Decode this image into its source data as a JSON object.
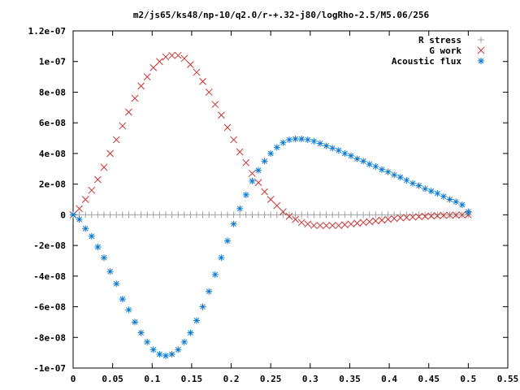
{
  "chart_data": {
    "type": "scatter",
    "title": "m2/js65/ks48/np-10/q2.0/r-+.32-j80/logRho-2.5/M5.06/256",
    "xlabel": "",
    "ylabel": "",
    "xlim": [
      0,
      0.55
    ],
    "ylim": [
      -1e-07,
      1.2e-07
    ],
    "grid": false,
    "legend_position": "top-right",
    "x_ticks": [
      {
        "value": 0,
        "label": "0"
      },
      {
        "value": 0.05,
        "label": "0.05"
      },
      {
        "value": 0.1,
        "label": "0.1"
      },
      {
        "value": 0.15,
        "label": "0.15"
      },
      {
        "value": 0.2,
        "label": "0.2"
      },
      {
        "value": 0.25,
        "label": "0.25"
      },
      {
        "value": 0.3,
        "label": "0.3"
      },
      {
        "value": 0.35,
        "label": "0.35"
      },
      {
        "value": 0.4,
        "label": "0.4"
      },
      {
        "value": 0.45,
        "label": "0.45"
      },
      {
        "value": 0.5,
        "label": "0.5"
      },
      {
        "value": 0.55,
        "label": "0.55"
      }
    ],
    "y_ticks": [
      {
        "value": -1e-07,
        "label": "-1e-07"
      },
      {
        "value": -8e-08,
        "label": "-8e-08"
      },
      {
        "value": -6e-08,
        "label": "-6e-08"
      },
      {
        "value": -4e-08,
        "label": "-4e-08"
      },
      {
        "value": -2e-08,
        "label": "-2e-08"
      },
      {
        "value": 0,
        "label": "0"
      },
      {
        "value": 2e-08,
        "label": "2e-08"
      },
      {
        "value": 4e-08,
        "label": "4e-08"
      },
      {
        "value": 6e-08,
        "label": "6e-08"
      },
      {
        "value": 8e-08,
        "label": "8e-08"
      },
      {
        "value": 1e-07,
        "label": "1e-07"
      },
      {
        "value": 1.2e-07,
        "label": "1.2e-07"
      }
    ],
    "x": [
      0.0,
      0.00781,
      0.01563,
      0.02344,
      0.03125,
      0.03906,
      0.04688,
      0.05469,
      0.0625,
      0.07031,
      0.07813,
      0.08594,
      0.09375,
      0.10156,
      0.10938,
      0.11719,
      0.125,
      0.13281,
      0.14063,
      0.14844,
      0.15625,
      0.16406,
      0.17188,
      0.17969,
      0.1875,
      0.19531,
      0.20313,
      0.21094,
      0.21875,
      0.22656,
      0.23438,
      0.24219,
      0.25,
      0.25781,
      0.26563,
      0.27344,
      0.28125,
      0.28906,
      0.29688,
      0.30469,
      0.3125,
      0.32031,
      0.32813,
      0.33594,
      0.34375,
      0.35156,
      0.35938,
      0.36719,
      0.375,
      0.38281,
      0.39063,
      0.39844,
      0.40625,
      0.41406,
      0.42188,
      0.42969,
      0.4375,
      0.44531,
      0.45313,
      0.46094,
      0.46875,
      0.47656,
      0.48438,
      0.49219,
      0.5
    ],
    "series": [
      {
        "name": "R stress",
        "marker": "plus",
        "color": "#a0a0a0",
        "values": [
          0.0,
          0.0,
          0.0,
          0.0,
          0.0,
          0.0,
          0.0,
          0.0,
          0.0,
          0.0,
          0.0,
          0.0,
          0.0,
          0.0,
          0.0,
          0.0,
          0.0,
          0.0,
          0.0,
          0.0,
          0.0,
          0.0,
          0.0,
          0.0,
          0.0,
          0.0,
          0.0,
          0.0,
          0.0,
          0.0,
          0.0,
          0.0,
          0.0,
          0.0,
          0.0,
          0.0,
          0.0,
          0.0,
          0.0,
          0.0,
          0.0,
          0.0,
          0.0,
          0.0,
          0.0,
          0.0,
          0.0,
          0.0,
          0.0,
          0.0,
          0.0,
          0.0,
          0.0,
          0.0,
          0.0,
          0.0,
          0.0,
          0.0,
          0.0,
          0.0,
          0.0,
          0.0,
          0.0,
          0.0,
          0.0
        ]
      },
      {
        "name": "G work",
        "marker": "cross",
        "color": "#cc3333",
        "values": [
          0.0,
          4e-09,
          1e-08,
          1.6e-08,
          2.3e-08,
          3.1e-08,
          4e-08,
          4.9e-08,
          5.8e-08,
          6.7e-08,
          7.6e-08,
          8.4e-08,
          9e-08,
          9.6e-08,
          1e-07,
          1.03e-07,
          1.04e-07,
          1.04e-07,
          1.02e-07,
          9.8e-08,
          9.3e-08,
          8.7e-08,
          8e-08,
          7.2e-08,
          6.5e-08,
          5.7e-08,
          4.9e-08,
          4.1e-08,
          3.4e-08,
          2.7e-08,
          2.1e-08,
          1.5e-08,
          1e-08,
          6e-09,
          2e-09,
          -1e-09,
          -3e-09,
          -5e-09,
          -6e-09,
          -7e-09,
          -7e-09,
          -7e-09,
          -7e-09,
          -7e-09,
          -6.5e-09,
          -6e-09,
          -5.5e-09,
          -5e-09,
          -4.5e-09,
          -4e-09,
          -3.5e-09,
          -3e-09,
          -2.5e-09,
          -2e-09,
          -1.8e-09,
          -1.5e-09,
          -1.2e-09,
          -1e-09,
          -8e-10,
          -6e-10,
          -4e-10,
          -3e-10,
          -2e-10,
          -1e-10,
          0.0
        ]
      },
      {
        "name": "Acoustic flux",
        "marker": "star",
        "color": "#0a78d2",
        "values": [
          0.0,
          -3e-09,
          -9e-09,
          -1.4e-08,
          -2.1e-08,
          -2.8e-08,
          -3.7e-08,
          -4.5e-08,
          -5.5e-08,
          -6.2e-08,
          -7e-08,
          -7.7e-08,
          -8.3e-08,
          -8.8e-08,
          -9.1e-08,
          -9.2e-08,
          -9.1e-08,
          -8.8e-08,
          -8.3e-08,
          -7.7e-08,
          -6.9e-08,
          -6e-08,
          -5e-08,
          -3.9e-08,
          -2.8e-08,
          -1.7e-08,
          -6e-09,
          4e-09,
          1.3e-08,
          2.2e-08,
          2.9e-08,
          3.5e-08,
          4e-08,
          4.4e-08,
          4.7e-08,
          4.9e-08,
          4.95e-08,
          4.95e-08,
          4.9e-08,
          4.8e-08,
          4.65e-08,
          4.5e-08,
          4.35e-08,
          4.2e-08,
          4e-08,
          3.85e-08,
          3.65e-08,
          3.5e-08,
          3.3e-08,
          3.15e-08,
          2.95e-08,
          2.8e-08,
          2.6e-08,
          2.45e-08,
          2.25e-08,
          2.05e-08,
          1.9e-08,
          1.7e-08,
          1.55e-08,
          1.4e-08,
          1.2e-08,
          1e-08,
          8.5e-09,
          6.5e-09,
          2e-09
        ]
      }
    ]
  }
}
